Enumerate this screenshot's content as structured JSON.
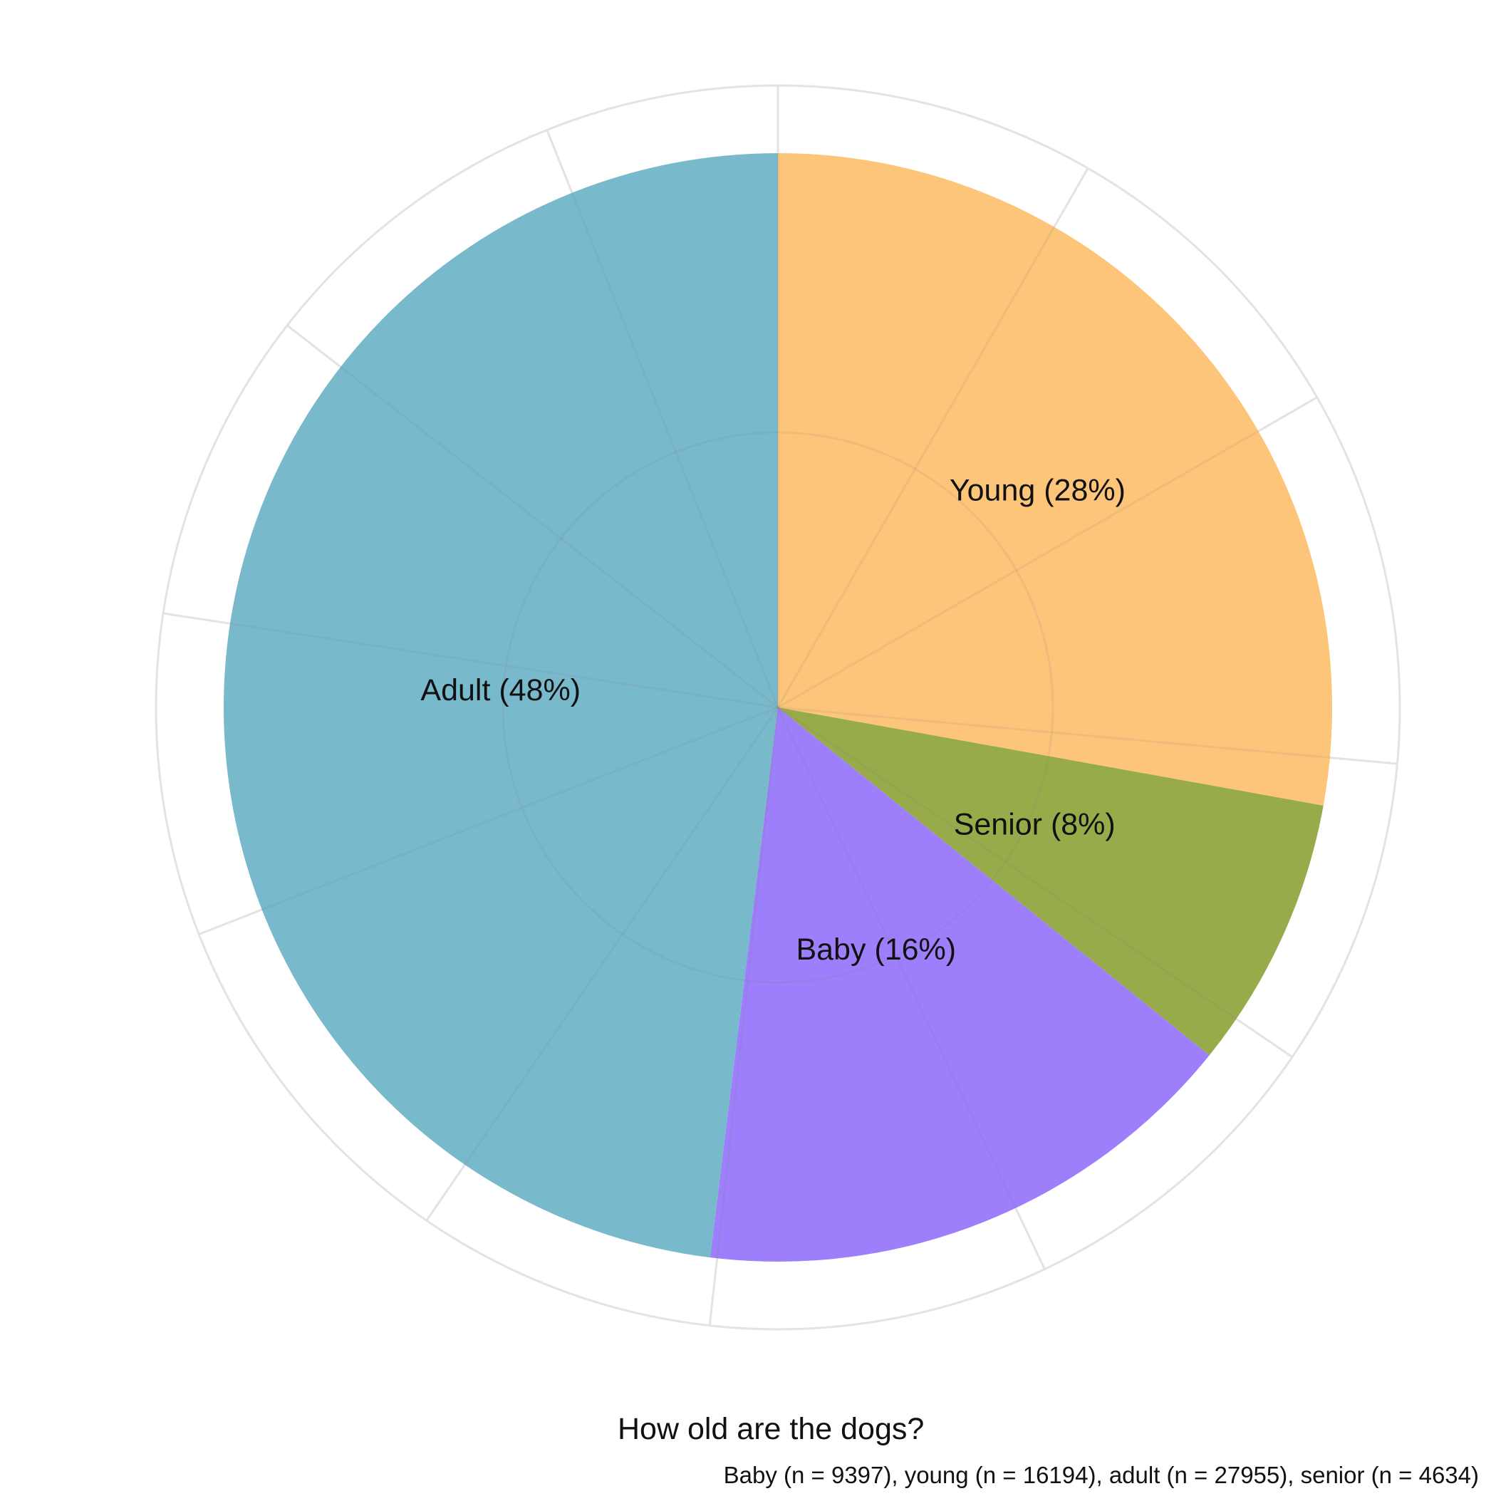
{
  "chart_data": {
    "type": "pie",
    "title": "How old are the dogs?",
    "caption": "Baby (n = 9397), young (n = 16194), adult (n = 27955), senior (n = 4634)",
    "slices": [
      {
        "label": "Young (28%)",
        "value": 16194,
        "color": "#fdc57a"
      },
      {
        "label": "Senior (8%)",
        "value": 4634,
        "color": "#97ab4b"
      },
      {
        "label": "Baby (16%)",
        "value": 9397,
        "color": "#9d7ffc"
      },
      {
        "label": "Adult (48%)",
        "value": 27955,
        "color": "#79b9cc"
      }
    ],
    "grid": true,
    "legend": "none"
  }
}
